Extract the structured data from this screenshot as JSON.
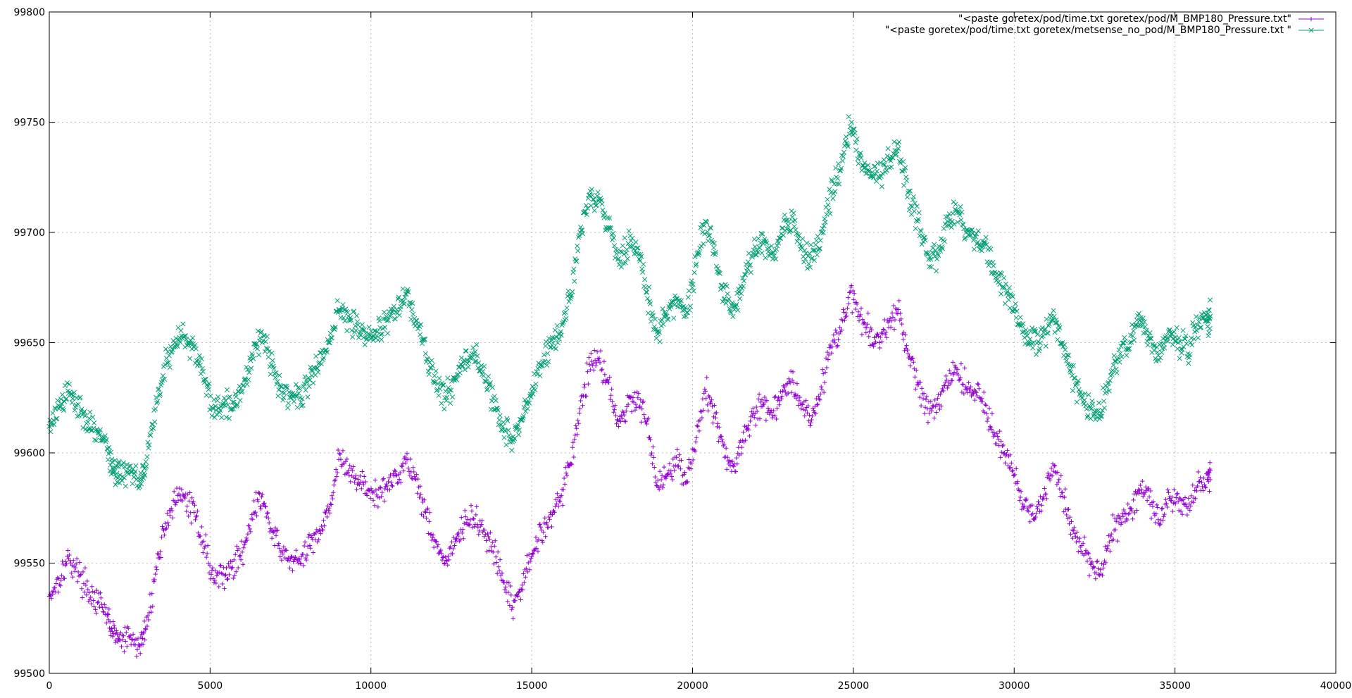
{
  "chart_data": {
    "type": "scatter",
    "title": "",
    "xlabel": "",
    "ylabel": "",
    "xlim": [
      0,
      40000
    ],
    "ylim": [
      99500,
      99800
    ],
    "x_ticks": [
      "0",
      "5000",
      "10000",
      "15000",
      "20000",
      "25000",
      "30000",
      "35000",
      "40000"
    ],
    "y_ticks": [
      "99500",
      "99550",
      "99600",
      "99650",
      "99700",
      "99750",
      "99800"
    ],
    "grid": true,
    "legend_position": "top-right",
    "series": [
      {
        "name": "\"<paste goretex/pod/time.txt goretex/pod/M_BMP180_Pressure.txt\"",
        "color": "#9400d3",
        "marker": "plus",
        "x": [
          0,
          300,
          600,
          900,
          1200,
          1500,
          1800,
          2000,
          2200,
          2500,
          2800,
          3000,
          3300,
          3600,
          3900,
          4200,
          4500,
          4800,
          5100,
          5400,
          5700,
          6000,
          6300,
          6600,
          6900,
          7200,
          7500,
          7800,
          8100,
          8400,
          8700,
          9000,
          9300,
          9600,
          9900,
          10200,
          10500,
          10800,
          11100,
          11400,
          11700,
          12000,
          12300,
          12600,
          12900,
          13200,
          13500,
          13800,
          14100,
          14400,
          14700,
          15000,
          15300,
          15600,
          15900,
          16200,
          16500,
          16800,
          17100,
          17400,
          17700,
          18000,
          18300,
          18600,
          18900,
          19200,
          19500,
          19800,
          20100,
          20400,
          20700,
          21000,
          21300,
          21600,
          21900,
          22200,
          22500,
          22800,
          23100,
          23400,
          23700,
          24000,
          24300,
          24600,
          24900,
          25200,
          25500,
          25800,
          26100,
          26400,
          26700,
          27000,
          27300,
          27600,
          27900,
          28200,
          28500,
          28800,
          29100,
          29400,
          29700,
          30000,
          30300,
          30600,
          30900,
          31200,
          31500,
          31800,
          32100,
          32400,
          32700,
          33000,
          33300,
          33600,
          33900,
          34200,
          34500,
          34800,
          35100,
          35400,
          35700,
          36000,
          36100
        ],
        "y": [
          99535,
          99543,
          99552,
          99546,
          99538,
          99532,
          99526,
          99518,
          99515,
          99516,
          99512,
          99520,
          99545,
          99568,
          99578,
          99580,
          99573,
          99560,
          99543,
          99545,
          99548,
          99555,
          99572,
          99580,
          99565,
          99555,
          99552,
          99550,
          99558,
          99565,
          99575,
          99597,
          99592,
          99588,
          99583,
          99580,
          99585,
          99590,
          99597,
          99588,
          99573,
          99560,
          99550,
          99558,
          99568,
          99570,
          99565,
          99555,
          99542,
          99530,
          99540,
          99553,
          99565,
          99572,
          99580,
          99595,
          99620,
          99640,
          99643,
          99632,
          99612,
          99622,
          99625,
          99615,
          99585,
          99590,
          99598,
          99587,
          99605,
          99628,
          99618,
          99598,
          99595,
          99605,
          99618,
          99622,
          99617,
          99628,
          99633,
          99622,
          99615,
          99630,
          99648,
          99655,
          99673,
          99662,
          99655,
          99650,
          99657,
          99665,
          99645,
          99632,
          99620,
          99622,
          99633,
          99638,
          99630,
          99628,
          99622,
          99608,
          99600,
          99590,
          99575,
          99570,
          99580,
          99595,
          99582,
          99565,
          99558,
          99550,
          99545,
          99562,
          99570,
          99575,
          99583,
          99580,
          99568,
          99582,
          99578,
          99575,
          99585,
          99588,
          99592
        ]
      },
      {
        "name": "\"<paste goretex/pod/time.txt goretex/metsense_no_pod/M_BMP180_Pressure.txt \"",
        "color": "#009e73",
        "marker": "x",
        "x": [
          0,
          300,
          600,
          900,
          1200,
          1500,
          1800,
          2000,
          2200,
          2500,
          2800,
          3000,
          3300,
          3600,
          3900,
          4200,
          4500,
          4800,
          5100,
          5400,
          5700,
          6000,
          6300,
          6600,
          6900,
          7200,
          7500,
          7800,
          8100,
          8400,
          8700,
          9000,
          9300,
          9600,
          9900,
          10200,
          10500,
          10800,
          11100,
          11400,
          11700,
          12000,
          12300,
          12600,
          12900,
          13200,
          13500,
          13800,
          14100,
          14400,
          14700,
          15000,
          15300,
          15600,
          15900,
          16200,
          16500,
          16800,
          17100,
          17400,
          17700,
          18000,
          18300,
          18600,
          18900,
          19200,
          19500,
          19800,
          20100,
          20400,
          20700,
          21000,
          21300,
          21600,
          21900,
          22200,
          22500,
          22800,
          23100,
          23400,
          23700,
          24000,
          24300,
          24600,
          24900,
          25200,
          25500,
          25800,
          26100,
          26400,
          26700,
          27000,
          27300,
          27600,
          27900,
          28200,
          28500,
          28800,
          29100,
          29400,
          29700,
          30000,
          30300,
          30600,
          30900,
          31200,
          31500,
          31800,
          32100,
          32400,
          32700,
          33000,
          33300,
          33600,
          33900,
          34200,
          34500,
          34800,
          35100,
          35400,
          35700,
          36000,
          36100
        ],
        "y": [
          99612,
          99620,
          99627,
          99622,
          99614,
          99610,
          99602,
          99592,
          99590,
          99592,
          99588,
          99596,
          99620,
          99640,
          99650,
          99653,
          99648,
          99633,
          99620,
          99622,
          99623,
          99628,
          99645,
          99655,
          99640,
          99630,
          99627,
          99625,
          99633,
          99641,
          99650,
          99665,
          99662,
          99658,
          99652,
          99655,
          99660,
          99665,
          99672,
          99660,
          99645,
          99632,
          99625,
          99633,
          99642,
          99645,
          99635,
          99625,
          99612,
          99605,
          99615,
          99628,
          99640,
          99648,
          99655,
          99670,
          99700,
          99717,
          99715,
          99702,
          99688,
          99695,
          99693,
          99670,
          99655,
          99662,
          99670,
          99662,
          99685,
          99705,
          99690,
          99670,
          99665,
          99678,
          99692,
          99695,
          99688,
          99702,
          99707,
          99693,
          99688,
          99700,
          99718,
          99728,
          99748,
          99735,
          99728,
          99725,
          99733,
          99738,
          99718,
          99705,
          99690,
          99688,
          99703,
          99710,
          99700,
          99698,
          99695,
          99682,
          99675,
          99665,
          99655,
          99650,
          99653,
          99660,
          99650,
          99635,
          99625,
          99620,
          99618,
          99635,
          99645,
          99650,
          99660,
          99652,
          99642,
          99655,
          99650,
          99645,
          99658,
          99660,
          99662
        ]
      }
    ]
  }
}
